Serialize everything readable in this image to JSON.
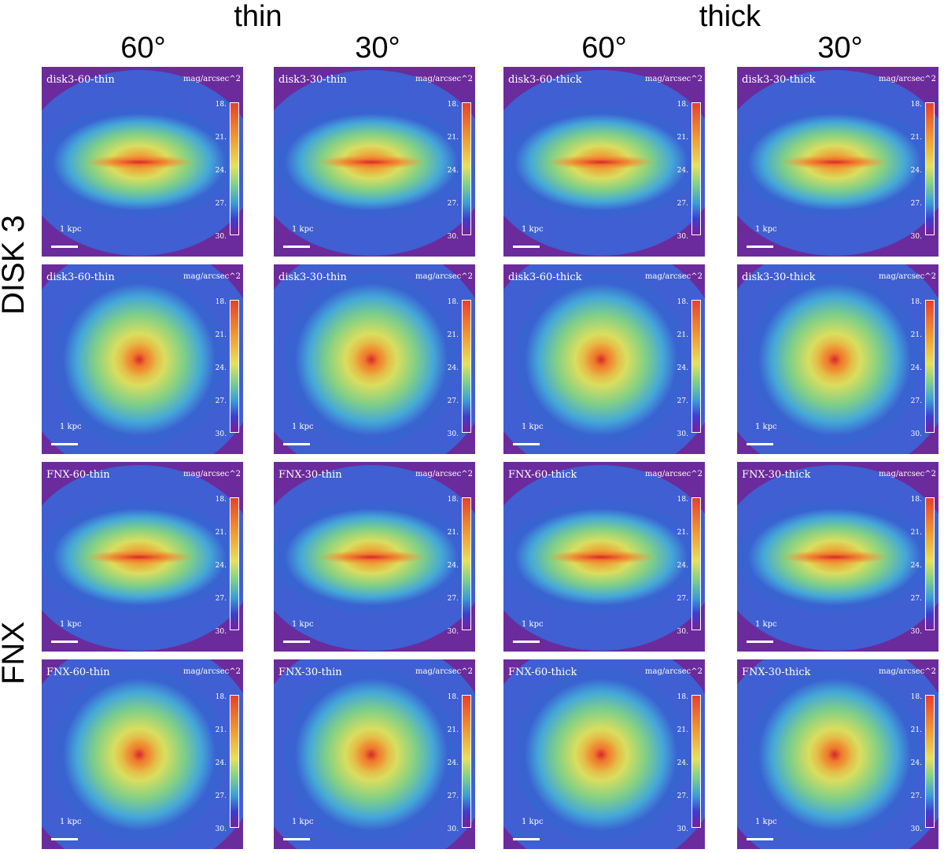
{
  "headers": {
    "groups": [
      "thin",
      "thick"
    ],
    "angles": [
      "60°",
      "30°",
      "60°",
      "30°"
    ]
  },
  "row_labels": [
    "DISK 3",
    "FNX"
  ],
  "colorbar": {
    "unit": "mag/arcsec^2",
    "ticks": [
      "18.",
      "21.",
      "24.",
      "27.",
      "30."
    ],
    "colors": [
      "#e8412b",
      "#f0a032",
      "#e6e25c",
      "#7fd08a",
      "#3a9fd6",
      "#3b3fd0",
      "#7a1f9a"
    ]
  },
  "scale_bar_label": "1 kpc",
  "panels": [
    {
      "title": "disk3-60-thin",
      "view": "edge"
    },
    {
      "title": "disk3-30-thin",
      "view": "edge"
    },
    {
      "title": "disk3-60-thick",
      "view": "edge"
    },
    {
      "title": "disk3-30-thick",
      "view": "edge"
    },
    {
      "title": "disk3-60-thin",
      "view": "face"
    },
    {
      "title": "disk3-30-thin",
      "view": "face"
    },
    {
      "title": "disk3-60-thick",
      "view": "face"
    },
    {
      "title": "disk3-30-thick",
      "view": "face"
    },
    {
      "title": "FNX-60-thin",
      "view": "edge"
    },
    {
      "title": "FNX-30-thin",
      "view": "edge"
    },
    {
      "title": "FNX-60-thick",
      "view": "edge"
    },
    {
      "title": "FNX-30-thick",
      "view": "edge"
    },
    {
      "title": "FNX-60-thin",
      "view": "face"
    },
    {
      "title": "FNX-30-thin",
      "view": "face"
    },
    {
      "title": "FNX-60-thick",
      "view": "face"
    },
    {
      "title": "FNX-30-thick",
      "view": "face"
    }
  ]
}
